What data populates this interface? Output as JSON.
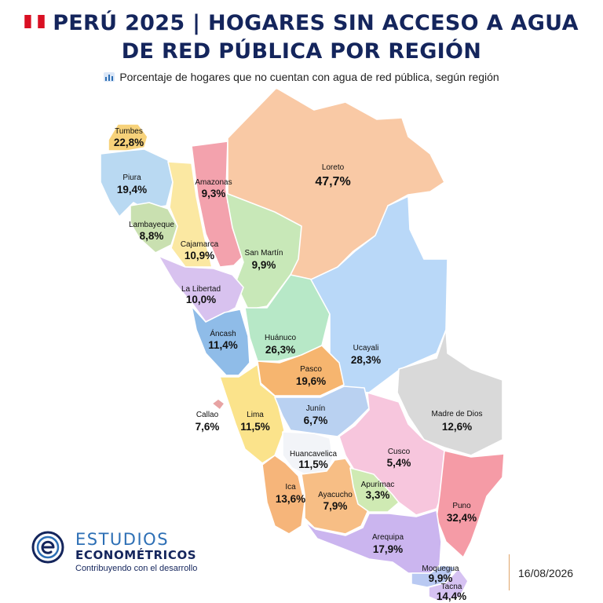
{
  "header": {
    "title_line1": "PERÚ 2025 | HOGARES SIN ACCESO A AGUA",
    "title_line2": "DE RED PÚBLICA POR REGIÓN",
    "subtitle": "Porcentaje de hogares que no cuentan con agua de red pública, según región",
    "flag_icon": "peru-flag-icon",
    "subtitle_icon": "bar-chart-icon"
  },
  "map": {
    "regions": [
      {
        "id": "tumbes",
        "name": "Tumbes",
        "value": "22,8%",
        "color": "#f7d27a"
      },
      {
        "id": "piura",
        "name": "Piura",
        "value": "19,4%",
        "color": "#b9d9f2"
      },
      {
        "id": "amazonas",
        "name": "Amazonas",
        "value": "9,3%",
        "color": "#f3a2ad"
      },
      {
        "id": "loreto",
        "name": "Loreto",
        "value": "47,7%",
        "color": "#f9c9a5"
      },
      {
        "id": "lambayeque",
        "name": "Lambayeque",
        "value": "8,8%",
        "color": "#c9e0b0"
      },
      {
        "id": "cajamarca",
        "name": "Cajamarca",
        "value": "10,9%",
        "color": "#fbe8a2"
      },
      {
        "id": "san-martin",
        "name": "San Martín",
        "value": "9,9%",
        "color": "#c8e8b8"
      },
      {
        "id": "la-libertad",
        "name": "La Libertad",
        "value": "10,0%",
        "color": "#d8c2ef"
      },
      {
        "id": "ancash",
        "name": "Áncash",
        "value": "11,4%",
        "color": "#8fbce8"
      },
      {
        "id": "huanuco",
        "name": "Huánuco",
        "value": "26,3%",
        "color": "#b7e8c7"
      },
      {
        "id": "ucayali",
        "name": "Ucayali",
        "value": "28,3%",
        "color": "#b9d8f8"
      },
      {
        "id": "pasco",
        "name": "Pasco",
        "value": "19,6%",
        "color": "#f6b56f"
      },
      {
        "id": "callao",
        "name": "Callao",
        "value": "7,6%",
        "color": "#e7a3a3"
      },
      {
        "id": "lima",
        "name": "Lima",
        "value": "11,5%",
        "color": "#fbe38b"
      },
      {
        "id": "junin",
        "name": "Junín",
        "value": "6,7%",
        "color": "#b9d1f1"
      },
      {
        "id": "madre-de-dios",
        "name": "Madre de Dios",
        "value": "12,6%",
        "color": "#d9d9d9"
      },
      {
        "id": "huancavelica",
        "name": "Huancavelica",
        "value": "11,5%",
        "color": "#f2f4f8"
      },
      {
        "id": "cusco",
        "name": "Cusco",
        "value": "5,4%",
        "color": "#f7c6dd"
      },
      {
        "id": "ica",
        "name": "Ica",
        "value": "13,6%",
        "color": "#f6b57a"
      },
      {
        "id": "ayacucho",
        "name": "Ayacucho",
        "value": "7,9%",
        "color": "#f7be85"
      },
      {
        "id": "apurimac",
        "name": "Apurímac",
        "value": "3,3%",
        "color": "#cfeab3"
      },
      {
        "id": "puno",
        "name": "Puno",
        "value": "32,4%",
        "color": "#f59ba6"
      },
      {
        "id": "arequipa",
        "name": "Arequipa",
        "value": "17,9%",
        "color": "#cbb5ef"
      },
      {
        "id": "moquegua",
        "name": "Moquegua",
        "value": "9,9%",
        "color": "#b9c9f2"
      },
      {
        "id": "tacna",
        "name": "Tacna",
        "value": "14,4%",
        "color": "#d6c2f2"
      }
    ]
  },
  "footer": {
    "brand_line1": "ESTUDIOS",
    "brand_line2": "ECONOMÉTRICOS",
    "tagline": "Contribuyendo con el desarrollo",
    "date": "16/08/2026",
    "logo_icon": "estudios-econometricos-logo"
  }
}
